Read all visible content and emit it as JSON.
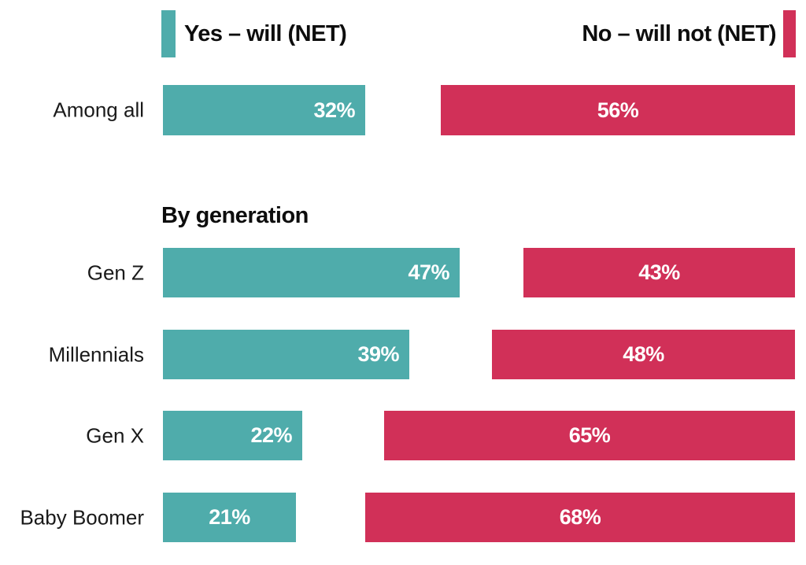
{
  "chart_data": {
    "type": "bar",
    "orientation": "horizontal",
    "title": "",
    "section_heading": "By generation",
    "value_suffix": "%",
    "xlim": [
      0,
      100
    ],
    "grid": false,
    "legend_position": "top",
    "categories": [
      "Among all",
      "Gen Z",
      "Millennials",
      "Gen X",
      "Baby Boomer"
    ],
    "series": [
      {
        "name": "Yes – will (NET)",
        "color": "#4FACAB",
        "values": [
          32,
          47,
          39,
          22,
          21
        ],
        "value_label_align": [
          "right",
          "right",
          "right",
          "right",
          "center"
        ]
      },
      {
        "name": "No – will not (NET)",
        "color": "#D13058",
        "values": [
          56,
          43,
          48,
          65,
          68
        ],
        "value_label_align": [
          "center",
          "center",
          "center",
          "center",
          "center"
        ]
      }
    ]
  }
}
